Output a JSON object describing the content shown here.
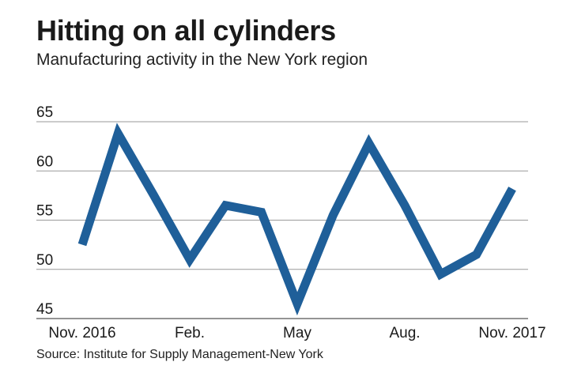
{
  "title": "Hitting on all cylinders",
  "subtitle": "Manufacturing activity in the New York region",
  "source": "Source: Institute for Supply Management-New York",
  "chart_data": {
    "type": "line",
    "title": "Hitting on all cylinders",
    "subtitle": "Manufacturing activity in the New York region",
    "xlabel": "",
    "ylabel": "",
    "ylim": [
      45,
      65
    ],
    "y_ticks": [
      45,
      50,
      55,
      60,
      65
    ],
    "x_tick_labels": [
      {
        "label": "Nov. 2016",
        "index": 0
      },
      {
        "label": "Feb.",
        "index": 3
      },
      {
        "label": "May",
        "index": 6
      },
      {
        "label": "Aug.",
        "index": 9
      },
      {
        "label": "Nov. 2017",
        "index": 12
      }
    ],
    "grid": true,
    "series": [
      {
        "color": "#1f5f99",
        "values": [
          52.5,
          63.8,
          57.5,
          51.0,
          56.5,
          55.8,
          46.5,
          55.5,
          62.8,
          56.5,
          49.5,
          51.5,
          58.2
        ]
      }
    ]
  }
}
